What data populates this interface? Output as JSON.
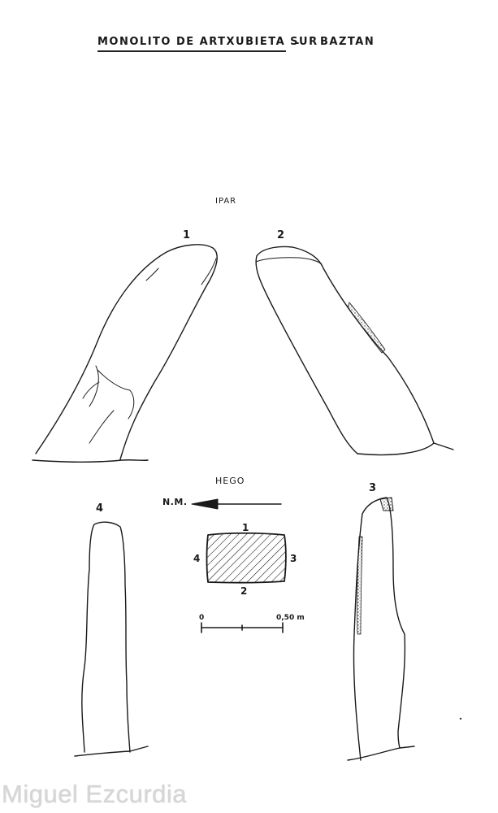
{
  "title": {
    "main": "MONOLITO DE ARTXUBIETA SUR",
    "separator": "-",
    "location": "BAZTAN"
  },
  "orientation": {
    "top": "IPAR",
    "bottom": "HEGO",
    "arrow_label": "N.M."
  },
  "faces": [
    {
      "number": "1"
    },
    {
      "number": "2"
    },
    {
      "number": "3"
    },
    {
      "number": "4"
    }
  ],
  "plan": {
    "side_top": "1",
    "side_bottom": "2",
    "side_right": "3",
    "side_left": "4"
  },
  "scale": {
    "start": "0",
    "end": "0,50 m"
  },
  "credit": "Miguel Ezcurdia"
}
